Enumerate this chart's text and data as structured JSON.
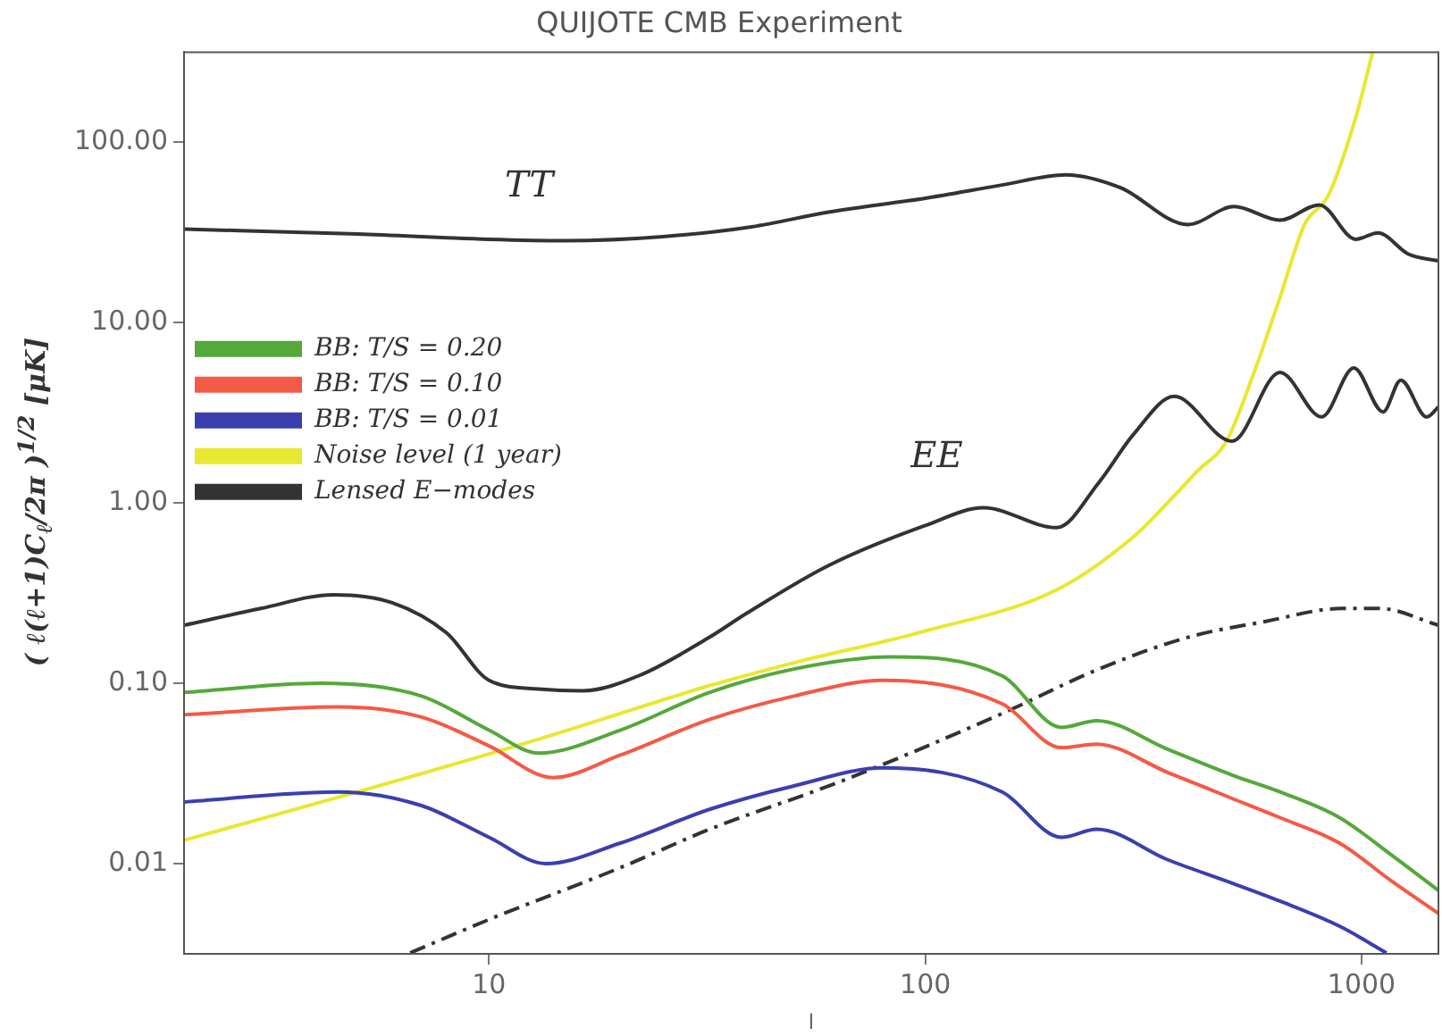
{
  "chart_data": {
    "type": "line",
    "title": "QUIJOTE CMB Experiment",
    "xlabel": "l",
    "ylabel": "( ℓ(ℓ+1)C$_{ℓ}$/2π )$^{1/2}$ [μK]",
    "log": "xy",
    "xlim": [
      2,
      1500
    ],
    "ylim": [
      0.003162,
      316.2
    ],
    "xticks": [
      10,
      100,
      1000
    ],
    "yticks": [
      {
        "value": 0.01,
        "label": "0.01"
      },
      {
        "value": 0.1,
        "label": "0.10"
      },
      {
        "value": 1,
        "label": "1.00"
      },
      {
        "value": 10,
        "label": "10.00"
      },
      {
        "value": 100,
        "label": "100.00"
      }
    ],
    "grid": false,
    "legend": "left",
    "marker": "none",
    "series": [
      {
        "color": "#333333",
        "x": [
          2,
          5,
          10,
          15,
          25,
          40,
          60,
          100,
          150,
          210,
          280,
          400,
          510,
          650,
          800,
          970,
          1090,
          1280,
          1500
        ],
        "values": [
          33,
          31,
          29,
          28.5,
          30,
          34,
          41,
          49,
          58,
          66,
          56,
          35,
          44,
          37,
          45,
          29,
          31.5,
          24,
          22
        ]
      },
      {
        "color": "#333333",
        "x": [
          2,
          3,
          4.4,
          6,
          8,
          10,
          13,
          16.4,
          22,
          32,
          39,
          60,
          100,
          136,
          200,
          250,
          300,
          372,
          505,
          650,
          810,
          960,
          1120,
          1230,
          1410,
          1500
        ],
        "values": [
          0.21,
          0.26,
          0.31,
          0.28,
          0.19,
          0.104,
          0.093,
          0.091,
          0.11,
          0.18,
          0.245,
          0.45,
          0.75,
          0.94,
          0.73,
          1.3,
          2.4,
          3.9,
          2.2,
          5.3,
          3.0,
          5.6,
          3.2,
          4.8,
          3.0,
          3.4
        ]
      },
      {
        "name": "BB: T/S = 0.20",
        "color": "#55a83a",
        "x": [
          2,
          4.1,
          7,
          10,
          13,
          20,
          32,
          50,
          83,
          150,
          205,
          247,
          360,
          505,
          650,
          890,
          1180,
          1500
        ],
        "values": [
          0.089,
          0.1,
          0.085,
          0.055,
          0.041,
          0.055,
          0.089,
          0.12,
          0.14,
          0.11,
          0.057,
          0.062,
          0.043,
          0.031,
          0.025,
          0.018,
          0.011,
          0.0071
        ]
      },
      {
        "name": "BB: T/S = 0.10",
        "color": "#f45a45",
        "x": [
          2,
          4.5,
          7,
          10,
          14,
          20,
          32,
          50,
          80,
          150,
          205,
          247,
          360,
          505,
          650,
          890,
          1180,
          1500
        ],
        "values": [
          0.067,
          0.074,
          0.065,
          0.045,
          0.03,
          0.04,
          0.063,
          0.085,
          0.104,
          0.077,
          0.044,
          0.046,
          0.032,
          0.023,
          0.018,
          0.013,
          0.0079,
          0.0053
        ]
      },
      {
        "name": "BB: T/S = 0.01",
        "color": "#3a3fb0",
        "x": [
          2,
          4.5,
          7,
          10,
          13.5,
          20,
          32,
          50,
          80,
          150,
          205,
          247,
          360,
          505,
          650,
          890,
          1140
        ],
        "values": [
          0.022,
          0.025,
          0.021,
          0.014,
          0.01,
          0.013,
          0.02,
          0.027,
          0.034,
          0.025,
          0.014,
          0.0155,
          0.0105,
          0.0078,
          0.0062,
          0.0045,
          0.0032
        ]
      },
      {
        "name": "Noise level (1 year)",
        "color": "#e8e830",
        "x": [
          2,
          5,
          13,
          32,
          50,
          100,
          200,
          300,
          363,
          420,
          490,
          570,
          650,
          740,
          840,
          970,
          1060
        ],
        "values": [
          0.0135,
          0.025,
          0.049,
          0.097,
          0.13,
          0.195,
          0.33,
          0.65,
          1.03,
          1.5,
          2.2,
          5.5,
          13.8,
          35,
          51,
          138,
          316
        ]
      },
      {
        "name": "Lensed E−modes",
        "color": "#333333",
        "line_style": "dashed",
        "x": [
          6.6,
          10,
          20,
          32,
          65,
          150,
          250,
          400,
          600,
          900,
          1100,
          1500
        ],
        "values": [
          0.0032,
          0.0049,
          0.0095,
          0.0155,
          0.029,
          0.068,
          0.12,
          0.18,
          0.22,
          0.26,
          0.26,
          0.21
        ]
      }
    ],
    "annotations": [
      "TT",
      "EE"
    ]
  }
}
